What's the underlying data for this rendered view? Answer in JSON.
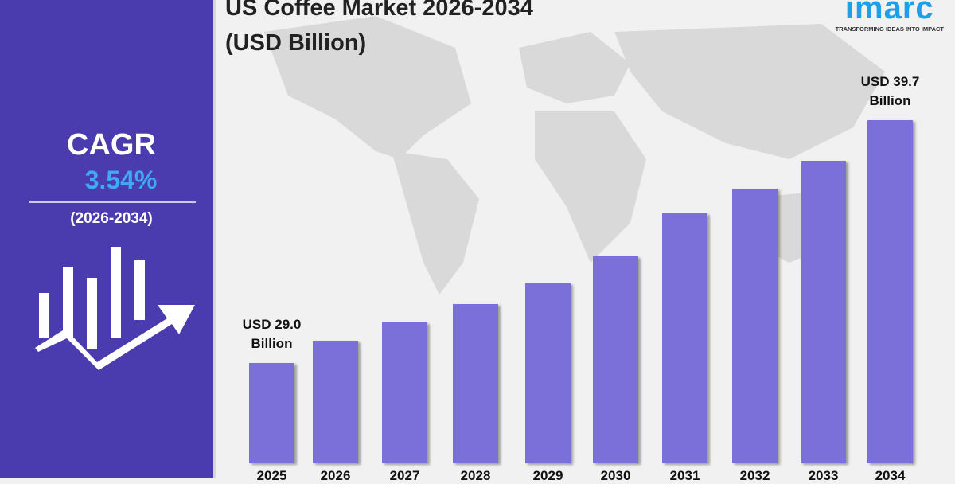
{
  "title_line1": "US Coffee Market 2026-2034",
  "title_line2": "(USD Billion)",
  "logo": {
    "name": "imarc",
    "tagline": "TRANSFORMING IDEAS INTO IMPACT"
  },
  "cagr": {
    "label": "CAGR",
    "value": "3.54%",
    "period": "(2026-2034)"
  },
  "colors": {
    "panel": "#4a3cae",
    "bar": "#7b6fd9",
    "cagr_value": "#3fa9f5",
    "logo": "#1ea0e6"
  },
  "chart_data": {
    "type": "bar",
    "title": "US Coffee Market 2026-2034 (USD Billion)",
    "categories": [
      "2025",
      "2026",
      "2027",
      "2028",
      "2029",
      "2030",
      "2031",
      "2032",
      "2033",
      "2034"
    ],
    "values": [
      29.0,
      30.0,
      30.8,
      31.6,
      32.5,
      33.7,
      35.6,
      36.7,
      37.9,
      39.7
    ],
    "data_labels": {
      "first": [
        "USD 29.0",
        "Billion"
      ],
      "last": [
        "USD 39.7",
        "Billion"
      ]
    },
    "grid": false,
    "legend": "none"
  }
}
